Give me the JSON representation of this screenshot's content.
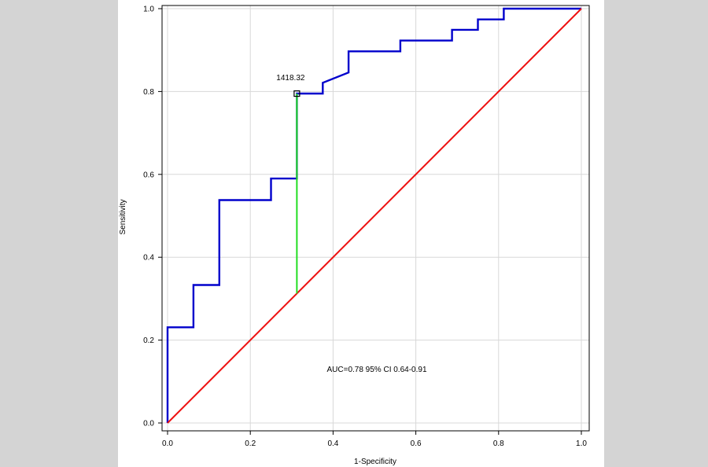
{
  "chart_data": {
    "type": "line",
    "title": "",
    "xlabel": "1-Specificity",
    "ylabel": "Sensitivity",
    "xlim": [
      0,
      1
    ],
    "ylim": [
      0,
      1
    ],
    "xticks": [
      "0.0",
      "0.2",
      "0.4",
      "0.6",
      "0.8",
      "1.0"
    ],
    "yticks": [
      "0.0",
      "0.2",
      "0.4",
      "0.6",
      "0.8",
      "1.0"
    ],
    "grid": true,
    "series": [
      {
        "color": "#0000cc",
        "points": [
          [
            0.0,
            0.0
          ],
          [
            0.0,
            0.231
          ],
          [
            0.0625,
            0.231
          ],
          [
            0.0625,
            0.333
          ],
          [
            0.125,
            0.333
          ],
          [
            0.125,
            0.538
          ],
          [
            0.25,
            0.538
          ],
          [
            0.25,
            0.59
          ],
          [
            0.3125,
            0.59
          ],
          [
            0.3125,
            0.795
          ],
          [
            0.375,
            0.795
          ],
          [
            0.375,
            0.821
          ],
          [
            0.4375,
            0.846
          ],
          [
            0.4375,
            0.897
          ],
          [
            0.5625,
            0.897
          ],
          [
            0.5625,
            0.923
          ],
          [
            0.6875,
            0.923
          ],
          [
            0.6875,
            0.949
          ],
          [
            0.75,
            0.949
          ],
          [
            0.75,
            0.974
          ],
          [
            0.8125,
            0.974
          ],
          [
            0.8125,
            1.0
          ],
          [
            1.0,
            1.0
          ]
        ]
      },
      {
        "color": "#ee1111",
        "points": [
          [
            0,
            0
          ],
          [
            1,
            1
          ]
        ]
      }
    ],
    "cutoff": {
      "label": "1418.32",
      "x": 0.3125,
      "y": 0.795,
      "y_low": 0.3125,
      "color": "#22dd22"
    },
    "annotation": "AUC=0.78 95% CI 0.64-0.91"
  }
}
